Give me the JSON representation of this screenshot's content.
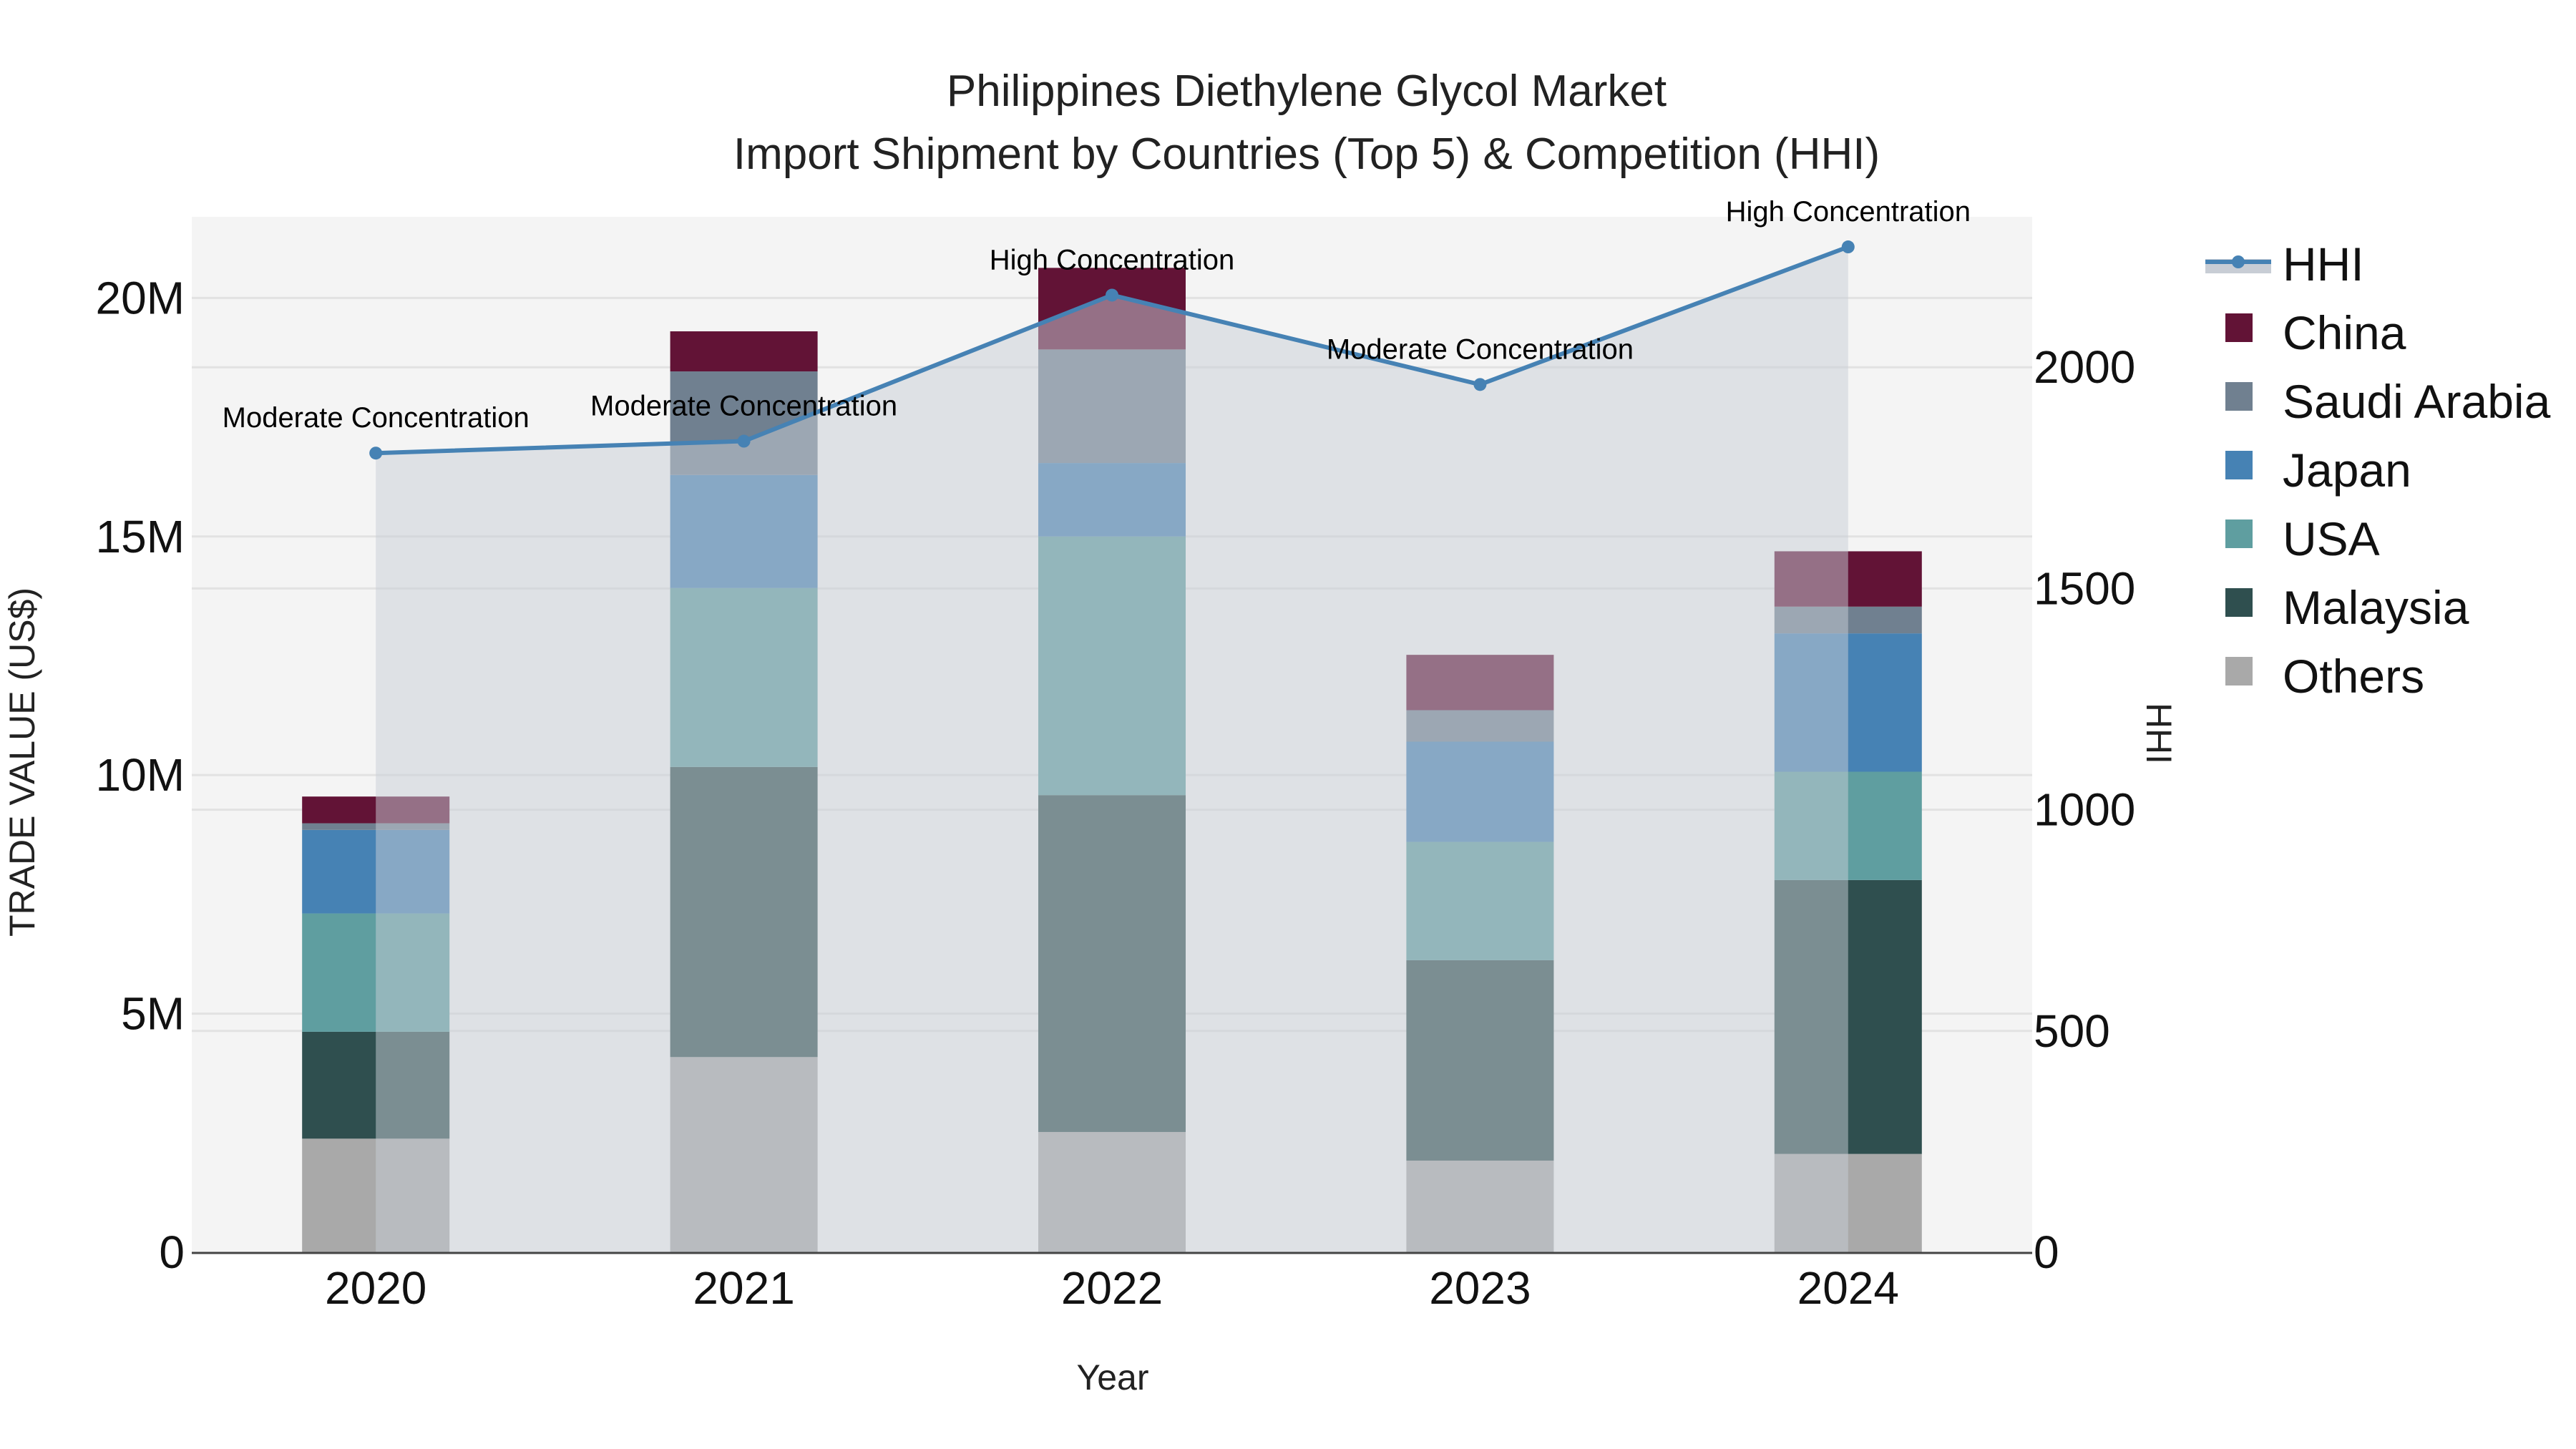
{
  "chart_data": {
    "type": "bar",
    "subtype": "stacked bar with secondary line (area-filled)",
    "title": "Philippines Diethylene Glycol Market",
    "subtitle": "Import Shipment by Countries (Top 5) & Competition (HHI)",
    "xlabel": "Year",
    "ylabel": "TRADE VALUE (US$)",
    "y2label": "HHI",
    "categories": [
      "2020",
      "2021",
      "2022",
      "2023",
      "2024"
    ],
    "ylim": [
      0,
      21700000
    ],
    "y_ticks": [
      0,
      5000000,
      10000000,
      15000000,
      20000000
    ],
    "y_tick_labels": [
      "0",
      "5M",
      "10M",
      "15M",
      "20M"
    ],
    "y2lim": [
      0,
      2340
    ],
    "y2_ticks": [
      0,
      500,
      1000,
      1500,
      2000
    ],
    "y2_tick_labels": [
      "0",
      "500",
      "1000",
      "1500",
      "2000"
    ],
    "grid": true,
    "legend_position": "right",
    "series": [
      {
        "name": "Others",
        "kind": "bar",
        "color": "#A9A9A9",
        "values": [
          2380000,
          4090000,
          2520000,
          1920000,
          2060000
        ]
      },
      {
        "name": "Malaysia",
        "kind": "bar",
        "color": "#2F4F4F",
        "values": [
          2240000,
          6080000,
          7060000,
          4200000,
          5740000
        ]
      },
      {
        "name": "USA",
        "kind": "bar",
        "color": "#5F9EA0",
        "values": [
          2480000,
          3750000,
          5420000,
          2480000,
          2270000
        ]
      },
      {
        "name": "Japan",
        "kind": "bar",
        "color": "#4682B4",
        "values": [
          1750000,
          2370000,
          1540000,
          2100000,
          2900000
        ]
      },
      {
        "name": "Saudi Arabia",
        "kind": "bar",
        "color": "#708090",
        "values": [
          140000,
          2170000,
          2380000,
          660000,
          560000
        ]
      },
      {
        "name": "China",
        "kind": "bar",
        "color": "#621336",
        "values": [
          560000,
          840000,
          1710000,
          1160000,
          1160000
        ]
      },
      {
        "name": "HHI",
        "kind": "line",
        "axis": "y2",
        "color": "#4682B4",
        "fill": "#C8CDD5",
        "values": [
          1806,
          1833,
          2163,
          1961,
          2272
        ]
      }
    ],
    "annotations": [
      {
        "x": "2020",
        "text": "Moderate Concentration"
      },
      {
        "x": "2021",
        "text": "Moderate Concentration"
      },
      {
        "x": "2022",
        "text": "High Concentration"
      },
      {
        "x": "2023",
        "text": "Moderate Concentration"
      },
      {
        "x": "2024",
        "text": "High Concentration"
      }
    ]
  },
  "legend": {
    "items": [
      {
        "label": "HHI",
        "icon": "line-marker-icon",
        "color": "#4682B4"
      },
      {
        "label": "China",
        "icon": "square-icon",
        "color": "#621336"
      },
      {
        "label": "Saudi Arabia",
        "icon": "square-icon",
        "color": "#708090"
      },
      {
        "label": "Japan",
        "icon": "square-icon",
        "color": "#4682B4"
      },
      {
        "label": "USA",
        "icon": "square-icon",
        "color": "#5F9EA0"
      },
      {
        "label": "Malaysia",
        "icon": "square-icon",
        "color": "#2F4F4F"
      },
      {
        "label": "Others",
        "icon": "square-icon",
        "color": "#A9A9A9"
      }
    ]
  },
  "colors": {
    "plot_background": "#F4F4F4",
    "grid": "#E2E2E2",
    "axis_line": "#444444",
    "hhi_fill": "#C8CDD5"
  }
}
